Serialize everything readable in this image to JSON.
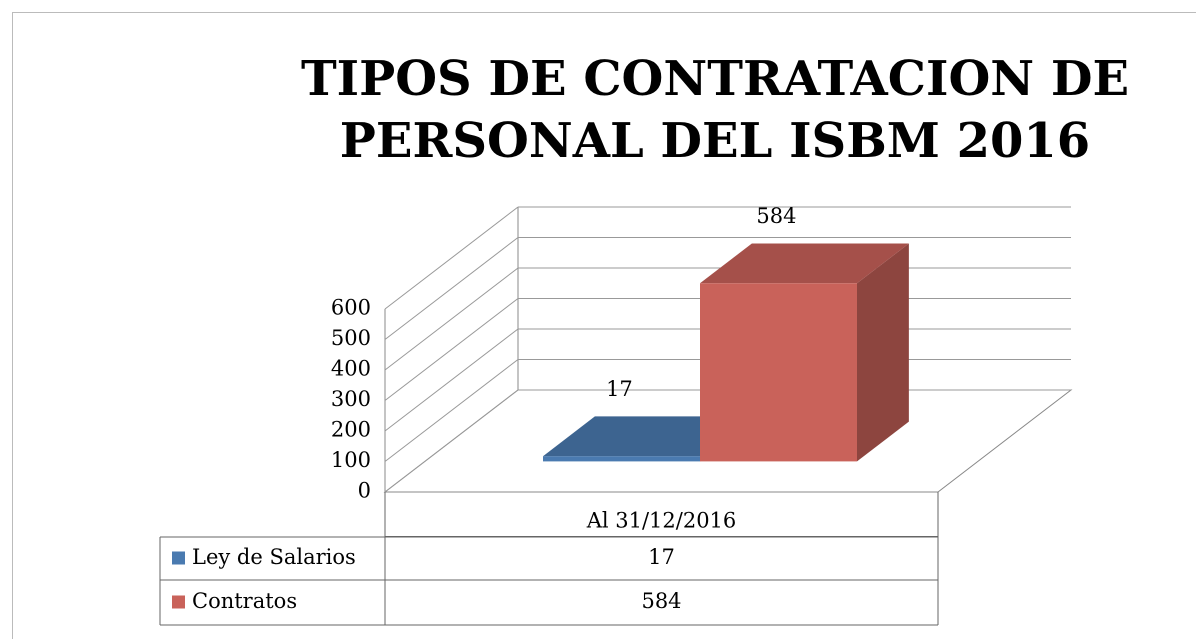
{
  "chart_data": {
    "type": "bar3d",
    "title": "TIPOS DE CONTRATACION DE PERSONAL DEL ISBM 2016",
    "categories": [
      "Al 31/12/2016"
    ],
    "series": [
      {
        "name": "Ley de Salarios",
        "color": "#4a7ab0",
        "values": [
          17
        ]
      },
      {
        "name": "Contratos",
        "color": "#c9625a",
        "values": [
          584
        ]
      }
    ],
    "ylim": [
      0,
      600
    ],
    "yticks": [
      0,
      100,
      200,
      300,
      400,
      500,
      600
    ],
    "grid": true,
    "data_table": true
  }
}
